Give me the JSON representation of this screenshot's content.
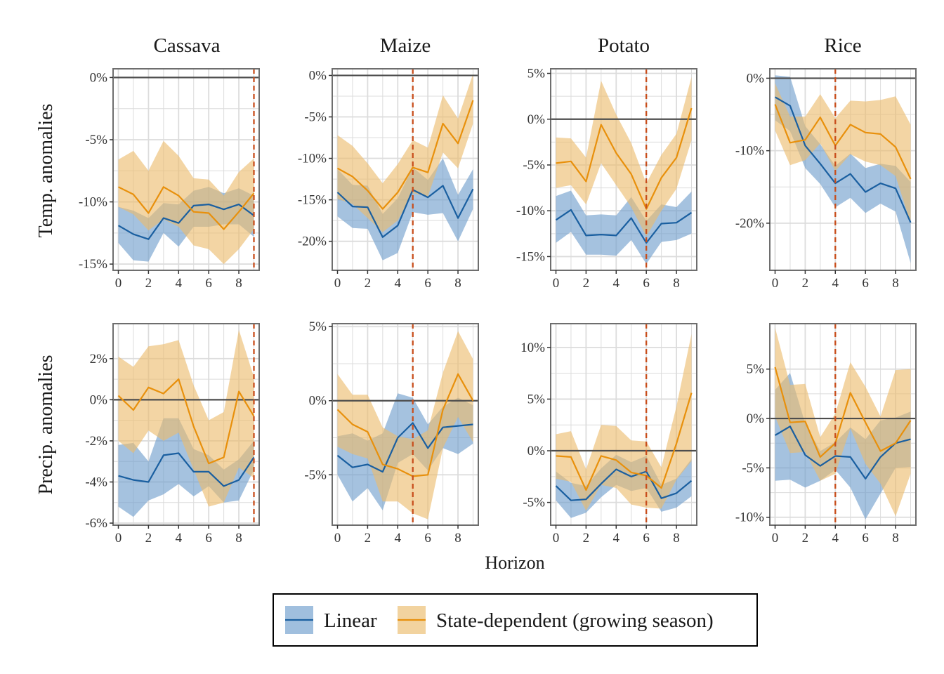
{
  "chart_data": {
    "type": "line",
    "xlabel": "Horizon",
    "row_labels": [
      "Temp. anomalies",
      "Precip. anomalies"
    ],
    "col_labels": [
      "Cassava",
      "Maize",
      "Potato",
      "Rice"
    ],
    "x": [
      0,
      1,
      2,
      3,
      4,
      5,
      6,
      7,
      8,
      9
    ],
    "xticks": [
      0,
      2,
      4,
      6,
      8
    ],
    "legend": {
      "position": "bottom",
      "items": [
        {
          "label": "Linear",
          "line_color": "#1a5fa0",
          "fill_color": "#6d9ccc"
        },
        {
          "label": "State-dependent (growing season)",
          "line_color": "#e8900c",
          "fill_color": "#ebbb6c"
        }
      ]
    },
    "colors": {
      "linear_line": "#1a5fa0",
      "linear_band": "#6d9ccc",
      "state_line": "#e8900c",
      "state_band": "#ebbb6c",
      "vline": "#c84e1c",
      "zero_line": "#4d4d4d",
      "grid": "#dcdcdc",
      "frame": "#6e6e6e"
    },
    "panels": [
      {
        "row": 0,
        "col": 0,
        "ylim": [
          -15.5,
          0.7
        ],
        "yticks": [
          0,
          -5,
          -10,
          -15
        ],
        "ytick_labels": [
          "0%",
          "-5%",
          "-10%",
          "-15%"
        ],
        "vline": 9,
        "series": [
          {
            "name": "Linear",
            "values": [
              -11.9,
              -12.6,
              -13.0,
              -11.3,
              -11.7,
              -10.3,
              -10.2,
              -10.6,
              -10.2,
              -11.1
            ],
            "lower": [
              -13.3,
              -14.7,
              -14.8,
              -12.5,
              -13.6,
              -12.0,
              -12.0,
              -11.8,
              -11.8,
              -12.8
            ],
            "upper": [
              -10.4,
              -10.7,
              -11.3,
              -10.1,
              -10.2,
              -9.1,
              -8.8,
              -9.3,
              -8.9,
              -9.5
            ]
          },
          {
            "name": "State-dependent (growing season)",
            "values": [
              -8.8,
              -9.4,
              -10.9,
              -8.8,
              -9.5,
              -10.8,
              -10.9,
              -12.2,
              -10.8,
              -9.3
            ],
            "lower": [
              -10.4,
              -11.0,
              -12.3,
              -11.4,
              -12.0,
              -13.5,
              -13.8,
              -15.0,
              -13.8,
              -12.2
            ],
            "upper": [
              -6.6,
              -5.9,
              -7.5,
              -5.1,
              -6.3,
              -8.1,
              -8.2,
              -9.5,
              -7.6,
              -6.5
            ]
          }
        ]
      },
      {
        "row": 0,
        "col": 1,
        "ylim": [
          -23.5,
          0.8
        ],
        "yticks": [
          0,
          -5,
          -10,
          -15,
          -20
        ],
        "ytick_labels": [
          "0%",
          "-5%",
          "-10%",
          "-15%",
          "-20%"
        ],
        "vline": 5,
        "series": [
          {
            "name": "Linear",
            "values": [
              -14.1,
              -15.8,
              -15.9,
              -19.5,
              -18.1,
              -13.8,
              -14.7,
              -13.3,
              -17.2,
              -13.7
            ],
            "lower": [
              -17.0,
              -18.4,
              -18.5,
              -22.3,
              -21.4,
              -16.5,
              -16.8,
              -16.6,
              -20.0,
              -16.1
            ],
            "upper": [
              -11.3,
              -13.2,
              -13.3,
              -16.7,
              -14.8,
              -11.1,
              -12.6,
              -10.0,
              -14.4,
              -11.3
            ]
          },
          {
            "name": "State-dependent (growing season)",
            "values": [
              -11.2,
              -12.2,
              -13.9,
              -16.1,
              -14.1,
              -11.1,
              -11.7,
              -5.8,
              -8.2,
              -3.0
            ],
            "lower": [
              -14.9,
              -15.5,
              -17.2,
              -18.9,
              -17.5,
              -14.2,
              -14.6,
              -9.3,
              -11.2,
              -5.8
            ],
            "upper": [
              -7.2,
              -8.5,
              -10.6,
              -13.0,
              -10.7,
              -7.8,
              -8.7,
              -2.4,
              -5.2,
              0.2
            ]
          }
        ]
      },
      {
        "row": 0,
        "col": 2,
        "ylim": [
          -16.5,
          5.5
        ],
        "yticks": [
          5,
          0,
          -5,
          -10,
          -15
        ],
        "ytick_labels": [
          "5%",
          "0%",
          "-5%",
          "-10%",
          "-15%"
        ],
        "vline": 6,
        "series": [
          {
            "name": "Linear",
            "values": [
              -11.0,
              -9.9,
              -12.7,
              -12.6,
              -12.7,
              -10.8,
              -13.5,
              -11.4,
              -11.3,
              -10.2
            ],
            "lower": [
              -13.5,
              -12.3,
              -14.8,
              -14.8,
              -14.9,
              -13.2,
              -15.8,
              -13.4,
              -13.2,
              -12.5
            ],
            "upper": [
              -8.4,
              -7.8,
              -10.5,
              -10.4,
              -10.5,
              -8.5,
              -11.1,
              -9.3,
              -9.6,
              -7.9
            ]
          },
          {
            "name": "State-dependent (growing season)",
            "values": [
              -4.8,
              -4.6,
              -6.8,
              -0.6,
              -3.7,
              -6.0,
              -9.8,
              -6.4,
              -4.2,
              1.2
            ],
            "lower": [
              -7.5,
              -7.2,
              -9.3,
              -4.8,
              -7.2,
              -9.6,
              -12.8,
              -10.0,
              -7.6,
              -2.3
            ],
            "upper": [
              -2.0,
              -2.1,
              -4.2,
              4.2,
              0.5,
              -2.6,
              -7.0,
              -3.9,
              -1.6,
              4.6
            ]
          }
        ]
      },
      {
        "row": 0,
        "col": 3,
        "ylim": [
          -26.5,
          1.3
        ],
        "yticks": [
          0,
          -10,
          -20
        ],
        "ytick_labels": [
          "0%",
          "-10%",
          "-20%"
        ],
        "vline": 4,
        "series": [
          {
            "name": "Linear",
            "values": [
              -2.6,
              -3.8,
              -9.3,
              -11.8,
              -14.5,
              -13.2,
              -15.7,
              -14.5,
              -15.2,
              -19.9
            ],
            "lower": [
              -5.8,
              -7.3,
              -12.4,
              -14.6,
              -17.8,
              -16.5,
              -18.6,
              -17.3,
              -18.4,
              -25.5
            ],
            "upper": [
              0.4,
              0.2,
              -6.6,
              -9.1,
              -12.1,
              -10.4,
              -12.4,
              -11.8,
              -12.1,
              -14.3
            ]
          },
          {
            "name": "State-dependent (growing season)",
            "values": [
              -3.6,
              -8.9,
              -8.5,
              -5.4,
              -9.3,
              -6.4,
              -7.5,
              -7.7,
              -9.5,
              -13.9
            ],
            "lower": [
              -7.2,
              -12.0,
              -11.3,
              -9.0,
              -12.8,
              -10.5,
              -11.5,
              -12.0,
              -13.5,
              -20.0
            ],
            "upper": [
              -0.7,
              -5.3,
              -5.3,
              -2.2,
              -5.5,
              -3.1,
              -3.2,
              -3.0,
              -2.5,
              -6.4
            ]
          }
        ]
      },
      {
        "row": 1,
        "col": 0,
        "ylim": [
          -6.1,
          3.7
        ],
        "yticks": [
          2,
          0,
          -2,
          -4,
          -6
        ],
        "ytick_labels": [
          "2%",
          "0%",
          "-2%",
          "-4%",
          "-6%"
        ],
        "vline": 9,
        "series": [
          {
            "name": "Linear",
            "values": [
              -3.7,
              -3.9,
              -4.0,
              -2.7,
              -2.6,
              -3.5,
              -3.5,
              -4.2,
              -3.9,
              -2.8
            ],
            "lower": [
              -5.2,
              -5.7,
              -4.9,
              -4.6,
              -4.1,
              -4.7,
              -4.2,
              -5.0,
              -4.9,
              -3.4
            ],
            "upper": [
              -2.2,
              -2.1,
              -3.0,
              -0.9,
              -0.9,
              -2.4,
              -2.7,
              -3.4,
              -2.9,
              -2.0
            ]
          },
          {
            "name": "State-dependent (growing season)",
            "values": [
              0.2,
              -0.5,
              0.6,
              0.3,
              1.0,
              -1.3,
              -3.1,
              -2.8,
              0.4,
              -0.8
            ],
            "lower": [
              -2.0,
              -2.6,
              -1.5,
              -2.0,
              -1.6,
              -3.4,
              -5.2,
              -5.0,
              -3.3,
              -3.8
            ],
            "upper": [
              2.1,
              1.6,
              2.6,
              2.7,
              2.9,
              0.7,
              -1.0,
              -0.6,
              3.4,
              1.1
            ]
          }
        ]
      },
      {
        "row": 1,
        "col": 1,
        "ylim": [
          -8.4,
          5.2
        ],
        "yticks": [
          5,
          0,
          -5
        ],
        "ytick_labels": [
          "5%",
          "0%",
          "-5%"
        ],
        "vline": 5,
        "series": [
          {
            "name": "Linear",
            "values": [
              -3.7,
              -4.5,
              -4.3,
              -4.8,
              -2.5,
              -1.5,
              -3.2,
              -1.8,
              -1.7,
              -1.6
            ],
            "lower": [
              -5.0,
              -6.8,
              -5.9,
              -7.4,
              -4.2,
              -3.6,
              -4.7,
              -3.2,
              -3.6,
              -2.9
            ],
            "upper": [
              -2.4,
              -2.2,
              -2.7,
              -2.2,
              0.5,
              0.2,
              -1.6,
              -0.4,
              0.2,
              -0.3
            ]
          },
          {
            "name": "State-dependent (growing season)",
            "values": [
              -0.6,
              -1.6,
              -2.1,
              -4.3,
              -4.6,
              -5.1,
              -5.0,
              -0.6,
              1.8,
              0.0
            ],
            "lower": [
              -3.1,
              -3.6,
              -3.9,
              -6.8,
              -6.8,
              -7.6,
              -8.0,
              -3.2,
              -1.1,
              -2.8
            ],
            "upper": [
              1.8,
              0.4,
              0.4,
              -1.8,
              -2.4,
              -2.6,
              -2.0,
              1.9,
              4.7,
              2.8
            ]
          }
        ]
      },
      {
        "row": 1,
        "col": 2,
        "ylim": [
          -7.2,
          12.3
        ],
        "yticks": [
          10,
          5,
          0,
          -5
        ],
        "ytick_labels": [
          "10%",
          "5%",
          "0%",
          "-5%"
        ],
        "vline": 6,
        "series": [
          {
            "name": "Linear",
            "values": [
              -3.4,
              -4.8,
              -4.7,
              -3.2,
              -1.8,
              -2.5,
              -2.0,
              -4.6,
              -4.1,
              -2.9
            ],
            "lower": [
              -4.8,
              -6.5,
              -6.0,
              -4.5,
              -3.3,
              -3.9,
              -3.6,
              -5.9,
              -5.5,
              -4.4
            ],
            "upper": [
              -2.0,
              -3.1,
              -3.4,
              -1.7,
              -0.4,
              -1.1,
              -0.5,
              -3.3,
              -2.7,
              -0.8
            ]
          },
          {
            "name": "State-dependent (growing season)",
            "values": [
              -0.5,
              -0.6,
              -3.8,
              -0.5,
              -0.9,
              -2.1,
              -2.4,
              -3.6,
              0.7,
              5.6
            ],
            "lower": [
              -2.7,
              -3.0,
              -5.8,
              -3.3,
              -3.6,
              -5.2,
              -5.5,
              -5.6,
              -2.8,
              -1.0
            ],
            "upper": [
              1.6,
              1.9,
              -1.8,
              2.5,
              2.4,
              1.0,
              0.9,
              -1.6,
              4.3,
              11.3
            ]
          }
        ]
      },
      {
        "row": 1,
        "col": 3,
        "ylim": [
          -10.8,
          9.6
        ],
        "yticks": [
          5,
          0,
          -5,
          -10
        ],
        "ytick_labels": [
          "5%",
          "0%",
          "-5%",
          "-10%"
        ],
        "vline": 4,
        "series": [
          {
            "name": "Linear",
            "values": [
              -1.7,
              -0.8,
              -3.7,
              -4.8,
              -3.8,
              -3.9,
              -6.1,
              -3.9,
              -2.5,
              -2.1
            ],
            "lower": [
              -6.3,
              -6.2,
              -7.0,
              -6.3,
              -5.2,
              -7.0,
              -10.2,
              -7.6,
              -5.0,
              -4.9
            ],
            "upper": [
              2.9,
              4.6,
              -0.5,
              -3.3,
              -2.4,
              -0.9,
              -2.1,
              -0.2,
              0.1,
              0.7
            ]
          },
          {
            "name": "State-dependent (growing season)",
            "values": [
              5.2,
              -0.4,
              -0.3,
              -3.9,
              -2.5,
              2.6,
              -0.4,
              -3.3,
              -2.5,
              -0.2
            ],
            "lower": [
              0.2,
              -3.5,
              -3.4,
              -6.3,
              -5.6,
              -1.0,
              -4.6,
              -6.6,
              -9.9,
              -5.6
            ],
            "upper": [
              9.2,
              3.4,
              3.5,
              -1.9,
              0.5,
              5.7,
              3.2,
              0.2,
              4.9,
              5.0
            ]
          }
        ]
      }
    ]
  }
}
